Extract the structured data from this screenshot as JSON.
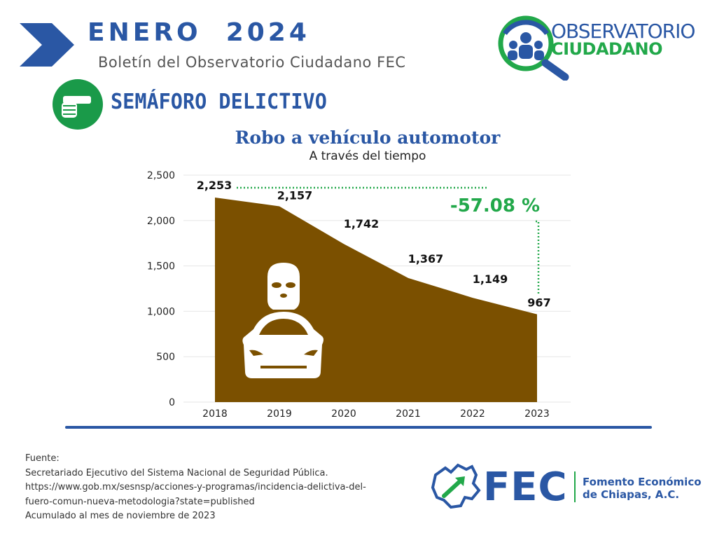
{
  "header": {
    "title": "ENERO  2024",
    "subtitle": "Boletín del Observatorio Ciudadano FEC",
    "logo_line1": "OBSERVATORIO",
    "logo_line2": "CIUDADANO"
  },
  "section": {
    "title": "SEMÁFORO DELICTIVO",
    "icon": "pointing-hand-icon"
  },
  "chart_data": {
    "type": "area",
    "title": "Robo a vehículo automotor",
    "subtitle": "A través del tiempo",
    "categories": [
      "2018",
      "2019",
      "2020",
      "2021",
      "2022",
      "2023"
    ],
    "values": [
      2253,
      2157,
      1742,
      1367,
      1149,
      967
    ],
    "value_labels": [
      "2,253",
      "2,157",
      "1,742",
      "1,367",
      "1,149",
      "967"
    ],
    "yticks": [
      "0",
      "500",
      "1,000",
      "1,500",
      "2,000",
      "2,500"
    ],
    "ytick_values": [
      0,
      500,
      1000,
      1500,
      2000,
      2500
    ],
    "ylim": [
      0,
      2500
    ],
    "grid": true,
    "annotation": "-57.08 %",
    "colors": {
      "area": "#7b5000",
      "annotation": "#22a84a",
      "title": "#2a57a4"
    }
  },
  "source": {
    "lines": [
      "Fuente:",
      "Secretariado Ejecutivo del Sistema Nacional de Seguridad Pública.",
      "https://www.gob.mx/sesnsp/acciones-y-programas/incidencia-delictiva-del-",
      "fuero-comun-nueva-metodologia?state=published",
      "Acumulado al mes de noviembre de 2023"
    ]
  },
  "footer": {
    "fec_word": "FEC",
    "fec_name_line1": "Fomento Económico",
    "fec_name_line2": "de Chiapas, A.C."
  }
}
